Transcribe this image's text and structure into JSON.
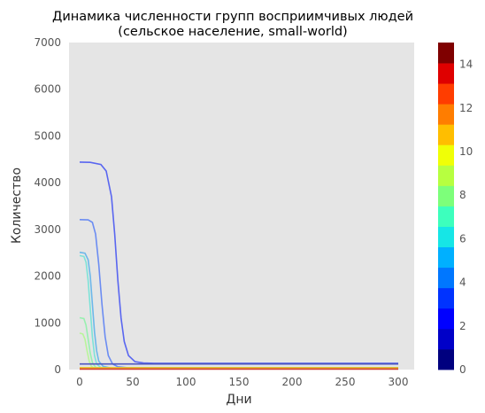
{
  "chart_data": {
    "type": "line",
    "title_line1": "Динамика численности групп восприимчивых людей",
    "title_line2": "(сельское население, small-world)",
    "xlabel": "Дни",
    "ylabel": "Количество",
    "xlim": [
      -10,
      315
    ],
    "ylim": [
      0,
      7000
    ],
    "xticks": [
      0,
      50,
      100,
      150,
      200,
      250,
      300
    ],
    "yticks": [
      0,
      1000,
      2000,
      3000,
      4000,
      5000,
      6000,
      7000
    ],
    "grid": false,
    "background": "#e5e5e5",
    "colorbar": {
      "ticks": [
        0,
        2,
        4,
        6,
        8,
        10,
        12,
        14
      ],
      "range": [
        0,
        15
      ],
      "colors": [
        "#00007f",
        "#0000c8",
        "#0000ff",
        "#0033ff",
        "#0077ff",
        "#00b0ff",
        "#16e6e6",
        "#3dffbd",
        "#7dff7a",
        "#b7ff40",
        "#f0ff06",
        "#ffbe00",
        "#ff7d00",
        "#ff3d00",
        "#df0000",
        "#7f0000"
      ]
    },
    "series": [
      {
        "color": "#5966f0",
        "values": [
          [
            0,
            4440
          ],
          [
            10,
            4435
          ],
          [
            20,
            4390
          ],
          [
            25,
            4250
          ],
          [
            30,
            3700
          ],
          [
            33,
            2900
          ],
          [
            36,
            1900
          ],
          [
            39,
            1100
          ],
          [
            42,
            600
          ],
          [
            46,
            300
          ],
          [
            52,
            170
          ],
          [
            60,
            140
          ],
          [
            70,
            135
          ],
          [
            300,
            135
          ]
        ]
      },
      {
        "color": "#6b8cf2",
        "values": [
          [
            0,
            3210
          ],
          [
            8,
            3205
          ],
          [
            12,
            3150
          ],
          [
            15,
            2900
          ],
          [
            18,
            2250
          ],
          [
            21,
            1400
          ],
          [
            24,
            700
          ],
          [
            27,
            300
          ],
          [
            31,
            120
          ],
          [
            36,
            60
          ],
          [
            45,
            40
          ],
          [
            300,
            40
          ]
        ]
      },
      {
        "color": "#6cb8ea",
        "values": [
          [
            0,
            2510
          ],
          [
            5,
            2490
          ],
          [
            8,
            2350
          ],
          [
            10,
            2000
          ],
          [
            12,
            1400
          ],
          [
            14,
            800
          ],
          [
            16,
            400
          ],
          [
            18,
            180
          ],
          [
            22,
            70
          ],
          [
            30,
            30
          ],
          [
            300,
            30
          ]
        ]
      },
      {
        "color": "#7de3d8",
        "values": [
          [
            0,
            2440
          ],
          [
            4,
            2420
          ],
          [
            6,
            2300
          ],
          [
            8,
            1900
          ],
          [
            10,
            1300
          ],
          [
            12,
            700
          ],
          [
            14,
            300
          ],
          [
            16,
            120
          ],
          [
            20,
            40
          ],
          [
            30,
            20
          ],
          [
            300,
            20
          ]
        ]
      },
      {
        "color": "#98f0b0",
        "values": [
          [
            0,
            1110
          ],
          [
            4,
            1090
          ],
          [
            6,
            950
          ],
          [
            8,
            650
          ],
          [
            10,
            350
          ],
          [
            12,
            150
          ],
          [
            15,
            50
          ],
          [
            20,
            20
          ],
          [
            300,
            20
          ]
        ]
      },
      {
        "color": "#b8f59a",
        "values": [
          [
            0,
            780
          ],
          [
            3,
            760
          ],
          [
            5,
            650
          ],
          [
            7,
            400
          ],
          [
            9,
            180
          ],
          [
            11,
            70
          ],
          [
            14,
            25
          ],
          [
            20,
            15
          ],
          [
            300,
            15
          ]
        ]
      },
      {
        "color": "#4d55c0",
        "values": [
          [
            0,
            120
          ],
          [
            300,
            120
          ]
        ]
      },
      {
        "color": "#e0d020",
        "values": [
          [
            0,
            40
          ],
          [
            300,
            40
          ]
        ]
      },
      {
        "color": "#f0a030",
        "values": [
          [
            0,
            25
          ],
          [
            300,
            25
          ]
        ]
      },
      {
        "color": "#d04030",
        "values": [
          [
            0,
            10
          ],
          [
            300,
            10
          ]
        ]
      }
    ]
  }
}
